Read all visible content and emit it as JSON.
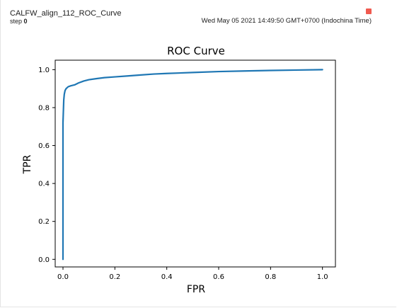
{
  "card": {
    "run_name": "CALFW_align_112_ROC_Curve",
    "step_label": "step",
    "step_value": "0",
    "timestamp": "Wed May 05 2021 14:49:50 GMT+0700 (Indochina Time)",
    "run_color": "#f05a4f",
    "run_color_icon": "square-swatch-icon"
  },
  "chart_data": {
    "type": "line",
    "title": "ROC Curve",
    "xlabel": "FPR",
    "ylabel": "TPR",
    "xlim": [
      -0.03,
      1.05
    ],
    "ylim": [
      -0.04,
      1.05
    ],
    "x_ticks": [
      "0.0",
      "0.2",
      "0.4",
      "0.6",
      "0.8",
      "1.0"
    ],
    "y_ticks": [
      "0.0",
      "0.2",
      "0.4",
      "0.6",
      "0.8",
      "1.0"
    ],
    "grid": false,
    "line_color": "#1f77b4",
    "series": [
      {
        "x": [
          0.0,
          0.0,
          0.002,
          0.003,
          0.005,
          0.008,
          0.012,
          0.02,
          0.03,
          0.045,
          0.06,
          0.08,
          0.1,
          0.13,
          0.16,
          0.2,
          0.25,
          0.3,
          0.35,
          0.4,
          0.5,
          0.6,
          0.7,
          0.8,
          0.9,
          1.0
        ],
        "y": [
          0.0,
          0.72,
          0.8,
          0.84,
          0.87,
          0.89,
          0.9,
          0.91,
          0.915,
          0.92,
          0.93,
          0.94,
          0.947,
          0.953,
          0.958,
          0.962,
          0.967,
          0.972,
          0.977,
          0.98,
          0.985,
          0.99,
          0.993,
          0.996,
          0.998,
          1.0
        ]
      }
    ]
  }
}
